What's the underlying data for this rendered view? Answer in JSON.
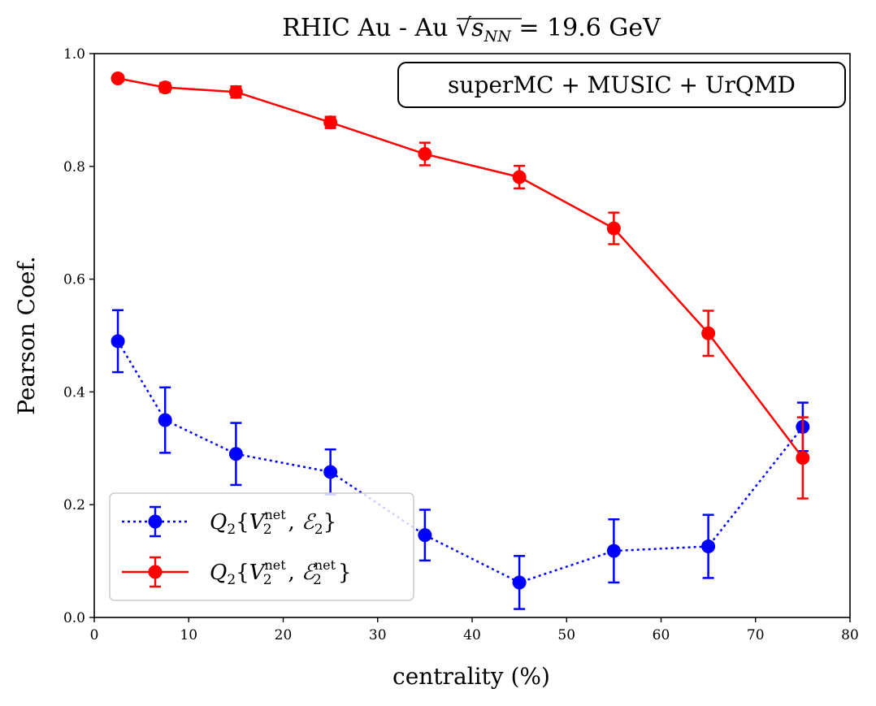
{
  "chart_data": {
    "type": "line",
    "title": "RHIC Au - Au √s_NN = 19.6 GeV",
    "title_parts": {
      "prefix": "RHIC Au - Au ",
      "sqrt_symbol": "√",
      "sqrt_arg": "s",
      "sqrt_sub": "NN",
      "suffix": " = 19.6 GeV"
    },
    "xlabel": "centrality (%)",
    "ylabel": "Pearson Coef.",
    "xlim": [
      0,
      80
    ],
    "ylim": [
      0.0,
      1.0
    ],
    "xticks": [
      0,
      10,
      20,
      30,
      40,
      50,
      60,
      70,
      80
    ],
    "yticks": [
      0.0,
      0.2,
      0.4,
      0.6,
      0.8,
      1.0
    ],
    "xtick_labels": [
      "0",
      "10",
      "20",
      "30",
      "40",
      "50",
      "60",
      "70",
      "80"
    ],
    "ytick_labels": [
      "0.0",
      "0.2",
      "0.4",
      "0.6",
      "0.8",
      "1.0"
    ],
    "annotation": "superMC + MUSIC + UrQMD",
    "legend_position": "lower-left",
    "series": [
      {
        "name": "Q2{V2net, E2}",
        "legend_label": {
          "q": "Q",
          "qsub": "2",
          "open": "{",
          "v": "V",
          "vsup": "net",
          "vsub": "2",
          "comma": ", ",
          "e": "ℰ",
          "esup": "",
          "esub": "2",
          "close": "}"
        },
        "color": "#0000ff",
        "linestyle": "dotted",
        "x": [
          2.5,
          7.5,
          15,
          25,
          35,
          45,
          55,
          65,
          75
        ],
        "y": [
          0.49,
          0.35,
          0.29,
          0.258,
          0.146,
          0.062,
          0.118,
          0.126,
          0.338
        ],
        "yerr": [
          0.055,
          0.058,
          0.055,
          0.04,
          0.045,
          0.047,
          0.056,
          0.056,
          0.043
        ]
      },
      {
        "name": "Q2{V2net, E2net}",
        "legend_label": {
          "q": "Q",
          "qsub": "2",
          "open": "{",
          "v": "V",
          "vsup": "net",
          "vsub": "2",
          "comma": ", ",
          "e": "ℰ",
          "esup": "net",
          "esub": "2",
          "close": "}"
        },
        "color": "#ff0000",
        "linestyle": "solid",
        "x": [
          2.5,
          7.5,
          15,
          25,
          35,
          45,
          55,
          65,
          75
        ],
        "y": [
          0.956,
          0.94,
          0.932,
          0.878,
          0.822,
          0.781,
          0.69,
          0.504,
          0.283
        ],
        "yerr": [
          0.005,
          0.008,
          0.01,
          0.01,
          0.02,
          0.02,
          0.028,
          0.04,
          0.072
        ]
      }
    ]
  }
}
